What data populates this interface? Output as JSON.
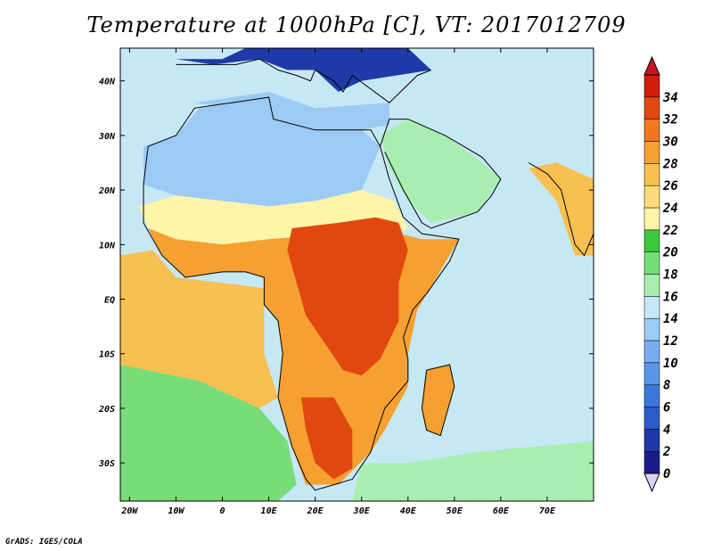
{
  "title": "Temperature at 1000hPa [C], VT: 2017012709",
  "credit": "GrADS: IGES/COLA",
  "map": {
    "lon_range": [
      -22,
      80
    ],
    "lat_range": [
      -37,
      46
    ],
    "lon_ticks": [
      {
        "lon": -20,
        "label": "20W"
      },
      {
        "lon": -10,
        "label": "10W"
      },
      {
        "lon": 0,
        "label": "0"
      },
      {
        "lon": 10,
        "label": "10E"
      },
      {
        "lon": 20,
        "label": "20E"
      },
      {
        "lon": 30,
        "label": "30E"
      },
      {
        "lon": 40,
        "label": "40E"
      },
      {
        "lon": 50,
        "label": "50E"
      },
      {
        "lon": 60,
        "label": "60E"
      },
      {
        "lon": 70,
        "label": "70E"
      }
    ],
    "lat_ticks": [
      {
        "lat": 40,
        "label": "40N"
      },
      {
        "lat": 30,
        "label": "30N"
      },
      {
        "lat": 20,
        "label": "20N"
      },
      {
        "lat": 10,
        "label": "10N"
      },
      {
        "lat": 0,
        "label": "EQ"
      },
      {
        "lat": -10,
        "label": "10S"
      },
      {
        "lat": -20,
        "label": "20S"
      },
      {
        "lat": -30,
        "label": "30S"
      }
    ]
  },
  "colorbar": {
    "levels": [
      "0",
      "2",
      "4",
      "6",
      "8",
      "10",
      "12",
      "14",
      "16",
      "18",
      "20",
      "22",
      "24",
      "26",
      "28",
      "30",
      "32",
      "34"
    ],
    "colors": [
      "#1a1a8a",
      "#1f3aa8",
      "#2a5bc8",
      "#3c78dc",
      "#5a95e8",
      "#78aef0",
      "#9ccaf5",
      "#c6e8f5",
      "#a8eeb0",
      "#78dd78",
      "#3cc83c",
      "#fff5a8",
      "#fadc78",
      "#f7c050",
      "#f5a030",
      "#f07820",
      "#e04810",
      "#d01e0a"
    ],
    "low_color": "#dcd2f5",
    "high_color": "#c8141e"
  },
  "regions": [
    {
      "name": "north-ocean-background",
      "temp": 15
    },
    {
      "name": "mediterranean",
      "temp": 12
    },
    {
      "name": "europe",
      "temp": 2
    },
    {
      "name": "sahara",
      "temp": 12
    },
    {
      "name": "arabia",
      "temp": 16
    },
    {
      "name": "india",
      "temp": 26
    },
    {
      "name": "sahel",
      "temp": 23
    },
    {
      "name": "tropical-africa",
      "temp": 28
    },
    {
      "name": "east-africa-hot",
      "temp": 32
    },
    {
      "name": "southern-africa",
      "temp": 28
    },
    {
      "name": "kalahari-hot",
      "temp": 32
    },
    {
      "name": "madagascar",
      "temp": 29
    },
    {
      "name": "tropical-ocean",
      "temp": 26
    },
    {
      "name": "south-atlantic",
      "temp": 19
    },
    {
      "name": "southern-ocean",
      "temp": 17
    }
  ]
}
